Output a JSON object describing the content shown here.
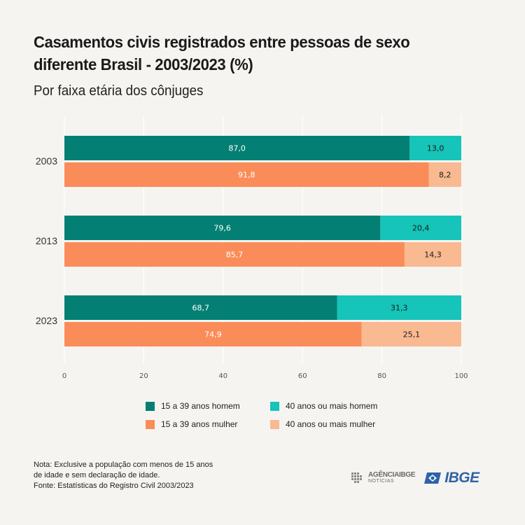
{
  "title": "Casamentos civis registrados entre pessoas de sexo diferente Brasil - 2003/2023  (%)",
  "subtitle": "Por faixa etária dos cônjuges",
  "colors": {
    "homem_15_39": "#047f73",
    "homem_40": "#16c4b9",
    "mulher_15_39": "#fa8c59",
    "mulher_40": "#f9b991",
    "background": "#f5f4f1",
    "grid": "#ffffff"
  },
  "chart_data": {
    "type": "bar",
    "orientation": "horizontal",
    "stacked": true,
    "categories": [
      "2003",
      "2013",
      "2023"
    ],
    "groups": [
      {
        "year": "2003",
        "bars": [
          {
            "sex": "homem",
            "segments": [
              87.0,
              13.0
            ],
            "labels": [
              "87,0",
              "13,0"
            ]
          },
          {
            "sex": "mulher",
            "segments": [
              91.8,
              8.2
            ],
            "labels": [
              "91,8",
              "8,2"
            ]
          }
        ]
      },
      {
        "year": "2013",
        "bars": [
          {
            "sex": "homem",
            "segments": [
              79.6,
              20.4
            ],
            "labels": [
              "79,6",
              "20,4"
            ]
          },
          {
            "sex": "mulher",
            "segments": [
              85.7,
              14.3
            ],
            "labels": [
              "85,7",
              "14,3"
            ]
          }
        ]
      },
      {
        "year": "2023",
        "bars": [
          {
            "sex": "homem",
            "segments": [
              68.7,
              31.3
            ],
            "labels": [
              "68,7",
              "31,3"
            ]
          },
          {
            "sex": "mulher",
            "segments": [
              74.9,
              25.1
            ],
            "labels": [
              "74,9",
              "25,1"
            ]
          }
        ]
      }
    ],
    "series": [
      {
        "name": "15 a 39 anos homem",
        "color": "#047f73"
      },
      {
        "name": "40 anos ou mais homem",
        "color": "#16c4b9"
      },
      {
        "name": "15 a 39 anos mulher",
        "color": "#fa8c59"
      },
      {
        "name": "40 anos ou mais mulher",
        "color": "#f9b991"
      }
    ],
    "xlim": [
      0,
      100
    ],
    "xticks": [
      "0",
      "20",
      "40",
      "60",
      "80",
      "100"
    ],
    "grid": true,
    "legend_position": "bottom"
  },
  "legend": [
    {
      "label": "15 a 39 anos homem",
      "color": "#047f73"
    },
    {
      "label": "40 anos ou mais homem",
      "color": "#16c4b9"
    },
    {
      "label": "15 a 39 anos mulher",
      "color": "#fa8c59"
    },
    {
      "label": "40 anos ou mais mulher",
      "color": "#f9b991"
    }
  ],
  "notes": {
    "line1": "Nota: Exclusive a população com menos de 15 anos",
    "line2": "de idade e sem declaração de idade.",
    "line3": "Fonte: Estatísticas do Registro Civil 2003/2023"
  },
  "logos": {
    "agencia_top": "AGÊNCIAIBGE",
    "agencia_sub": "NOTÍCIAS",
    "ibge": "IBGE"
  }
}
